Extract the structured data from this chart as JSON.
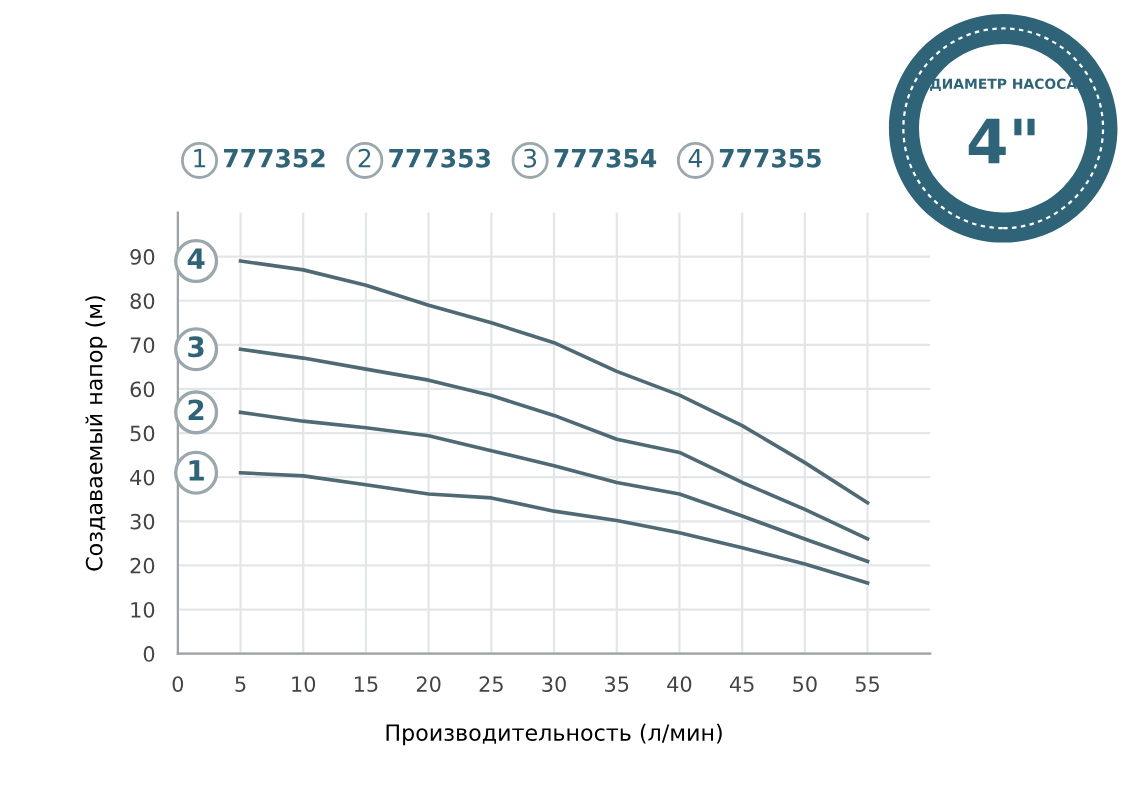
{
  "chart_data": {
    "type": "line",
    "xlabel": "Производительность (л/мин)",
    "ylabel": "Создаваемый напор (м)",
    "x": [
      5,
      10,
      15,
      20,
      25,
      30,
      35,
      40,
      45,
      50,
      55
    ],
    "series": [
      {
        "name": "1",
        "color": "#4f6a74",
        "values": [
          41,
          40.3,
          38.3,
          36.2,
          35.3,
          32.3,
          30.2,
          27.4,
          24,
          20.3,
          16
        ]
      },
      {
        "name": "2",
        "color": "#4f6a74",
        "values": [
          54.7,
          52.7,
          51.2,
          49.4,
          46,
          42.6,
          38.8,
          36.2,
          31.2,
          26,
          20.9
        ]
      },
      {
        "name": "3",
        "color": "#4f6a74",
        "values": [
          69,
          67,
          64.5,
          62,
          58.5,
          54,
          48.6,
          45.6,
          38.8,
          32.7,
          26
        ]
      },
      {
        "name": "4",
        "color": "#4f6a74",
        "values": [
          89,
          87,
          83.5,
          79,
          75,
          70.5,
          64,
          58.6,
          51.7,
          43.3,
          34.2
        ]
      }
    ],
    "annotations": [
      "777352",
      "777353",
      "777354",
      "777355",
      "ДИАМЕТР НАСОСА",
      "4\""
    ],
    "xlim": [
      0,
      60
    ],
    "ylim": [
      0,
      100
    ],
    "xticks": [
      0,
      5,
      10,
      15,
      20,
      25,
      30,
      35,
      40,
      45,
      50,
      55
    ],
    "yticks": [
      0,
      10,
      20,
      30,
      40,
      50,
      60,
      70,
      80,
      90
    ],
    "grid": true,
    "legend": "top",
    "marker": "none",
    "line_style": "solid"
  }
}
